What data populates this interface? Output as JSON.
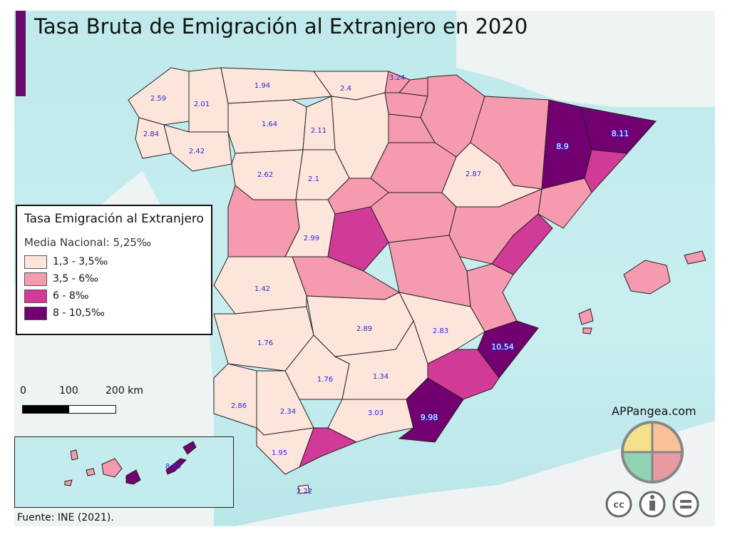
{
  "title": "Tasa Bruta de Emigración al Extranjero en 2020",
  "legend": {
    "title": "Tasa Emigración al Extranjero",
    "subtitle": "Media Nacional: 5,25‰",
    "classes": [
      {
        "label": "1,3 - 3,5‰",
        "color": "#fde5dc"
      },
      {
        "label": "3,5 - 6‰",
        "color": "#f69ab0"
      },
      {
        "label": "6 - 8‰",
        "color": "#d23a98"
      },
      {
        "label": "8 - 10,5‰",
        "color": "#720070"
      }
    ]
  },
  "scale": {
    "labels": [
      "0",
      "100",
      "200 km"
    ]
  },
  "source": "Fuente: INE (2021).",
  "brand": {
    "name": "APPangea.com",
    "license_icons": [
      "cc-icon",
      "attribution-icon",
      "no-derivatives-icon"
    ]
  },
  "labels": {
    "coruna": "2.59",
    "lugo": "2.01",
    "pontevedra": "2.84",
    "ourense": "2.42",
    "asturias": "1.94",
    "cantabria": "2.4",
    "vasco": "3.24",
    "leon": "1.64",
    "palencia": "2.11",
    "zamora": "2.62",
    "valladolid": "2.1",
    "zaragoza": "2.87",
    "lleida": "8.9",
    "girona": "8.11",
    "avila": "2.99",
    "caceres": "1.42",
    "badajoz": "1.76",
    "ciudadreal": "2.89",
    "albacete": "2.83",
    "alicante": "10.54",
    "cordoba": "1.76",
    "jaen": "1.34",
    "huelva": "2.86",
    "sevilla": "2.34",
    "granada": "3.03",
    "almeria": "9.98",
    "cadiz": "1.95",
    "ceuta": "2.22",
    "tenerife": "8.65"
  }
}
